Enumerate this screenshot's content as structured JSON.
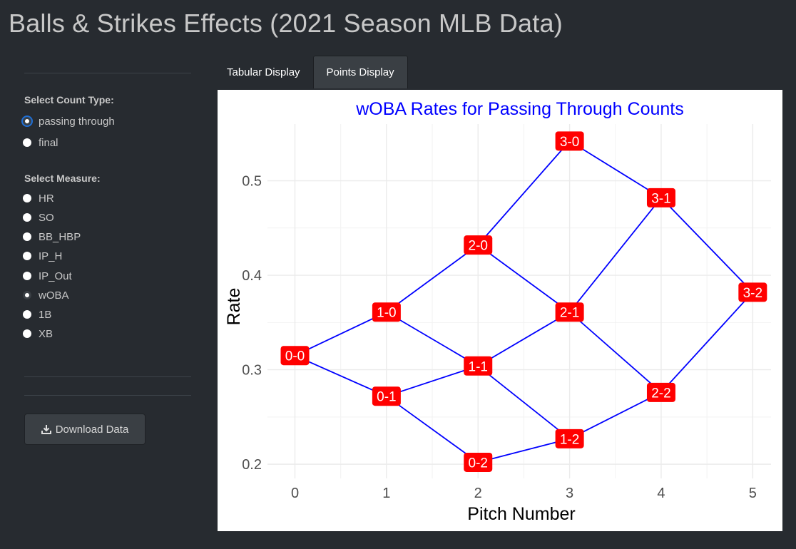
{
  "app": {
    "title": "Balls & Strikes Effects (2021 Season MLB Data)"
  },
  "sidebar": {
    "count_type_label": "Select Count Type:",
    "count_types": [
      {
        "label": "passing through",
        "checked": true
      },
      {
        "label": "final",
        "checked": false
      }
    ],
    "measure_label": "Select Measure:",
    "measures": [
      {
        "label": "HR",
        "checked": false
      },
      {
        "label": "SO",
        "checked": false
      },
      {
        "label": "BB_HBP",
        "checked": false
      },
      {
        "label": "IP_H",
        "checked": false
      },
      {
        "label": "IP_Out",
        "checked": false
      },
      {
        "label": "wOBA",
        "checked": true
      },
      {
        "label": "1B",
        "checked": false
      },
      {
        "label": "XB",
        "checked": false
      }
    ],
    "download_label": "Download Data",
    "download_icon": "download-icon"
  },
  "tabs": [
    {
      "label": "Tabular Display",
      "active": false
    },
    {
      "label": "Points Display",
      "active": true
    }
  ],
  "colors": {
    "background": "#272b30",
    "title_blue": "#0000ff",
    "line": "#0000ff",
    "label_fill": "#ff0000",
    "accent": "#1f6fd6"
  },
  "chart_data": {
    "type": "line",
    "title": "wOBA Rates for Passing Through Counts",
    "xlabel": "Pitch Number",
    "ylabel": "Rate",
    "xlim": [
      -0.3,
      5.2
    ],
    "ylim": [
      0.185,
      0.56
    ],
    "x_ticks": [
      0,
      1,
      2,
      3,
      4,
      5
    ],
    "y_ticks": [
      0.2,
      0.3,
      0.4,
      0.5
    ],
    "y_tick_labels": [
      "0.2",
      "0.3",
      "0.4",
      "0.5"
    ],
    "grid": true,
    "points": [
      {
        "label": "0-0",
        "x": 0,
        "y": 0.315
      },
      {
        "label": "1-0",
        "x": 1,
        "y": 0.361
      },
      {
        "label": "0-1",
        "x": 1,
        "y": 0.272
      },
      {
        "label": "2-0",
        "x": 2,
        "y": 0.432
      },
      {
        "label": "1-1",
        "x": 2,
        "y": 0.304
      },
      {
        "label": "0-2",
        "x": 2,
        "y": 0.202
      },
      {
        "label": "3-0",
        "x": 3,
        "y": 0.542
      },
      {
        "label": "2-1",
        "x": 3,
        "y": 0.361
      },
      {
        "label": "1-2",
        "x": 3,
        "y": 0.227
      },
      {
        "label": "3-1",
        "x": 4,
        "y": 0.482
      },
      {
        "label": "2-2",
        "x": 4,
        "y": 0.276
      },
      {
        "label": "3-2",
        "x": 5,
        "y": 0.382
      }
    ],
    "edges": [
      [
        "0-0",
        "1-0"
      ],
      [
        "0-0",
        "0-1"
      ],
      [
        "1-0",
        "2-0"
      ],
      [
        "1-0",
        "1-1"
      ],
      [
        "0-1",
        "1-1"
      ],
      [
        "0-1",
        "0-2"
      ],
      [
        "2-0",
        "3-0"
      ],
      [
        "2-0",
        "2-1"
      ],
      [
        "1-1",
        "2-1"
      ],
      [
        "1-1",
        "1-2"
      ],
      [
        "0-2",
        "1-2"
      ],
      [
        "3-0",
        "3-1"
      ],
      [
        "2-1",
        "3-1"
      ],
      [
        "2-1",
        "2-2"
      ],
      [
        "1-2",
        "2-2"
      ],
      [
        "3-1",
        "3-2"
      ],
      [
        "2-2",
        "3-2"
      ]
    ]
  }
}
